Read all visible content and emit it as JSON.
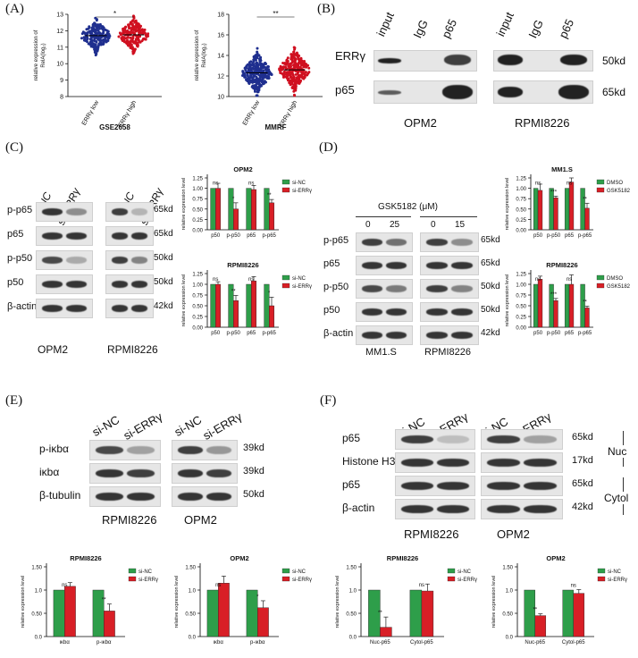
{
  "panels": {
    "A": {
      "label": "(A)",
      "charts": [
        {
          "id": "a1",
          "ylabel": "relative expression of\nRelA(log₂)",
          "groups": [
            "ERRγ low",
            "ERRγ high"
          ],
          "title": "GSE2658",
          "sig": "*",
          "yticks": [
            8,
            9,
            10,
            11,
            12,
            13
          ],
          "ylim": [
            8,
            13
          ],
          "colors": [
            "#1f2f8f",
            "#d01020"
          ],
          "median": [
            11.7,
            11.75
          ],
          "spread": [
            0.45,
            0.45
          ],
          "npoints": 200
        },
        {
          "id": "a2",
          "ylabel": "relative expression of\nRelA(log₂)",
          "groups": [
            "ERRγ low",
            "ERRγ high"
          ],
          "title": "MMRF",
          "sig": "**",
          "yticks": [
            10,
            12,
            14,
            16,
            18
          ],
          "ylim": [
            10,
            18
          ],
          "colors": [
            "#1f2f8f",
            "#d01020"
          ],
          "median": [
            12.3,
            12.6
          ],
          "spread": [
            0.9,
            0.9
          ],
          "npoints": 300
        }
      ]
    },
    "B": {
      "label": "(B)",
      "lanes_left": [
        "input",
        "IgG",
        "p65"
      ],
      "lanes_right": [
        "input",
        "IgG",
        "p65"
      ],
      "rows": [
        "ERRγ",
        "p65"
      ],
      "kd": [
        "50kd",
        "65kd"
      ],
      "cells": [
        "OPM2",
        "RPMI8226"
      ]
    },
    "C": {
      "label": "(C)",
      "lanes": [
        "si-NC",
        "si-ERRγ",
        "si-NC",
        "si-ERRγ"
      ],
      "rows": [
        "p-p65",
        "p65",
        "p-p50",
        "p50",
        "β-actin"
      ],
      "kd": [
        "65kd",
        "65kd",
        "50kd",
        "50kd",
        "42kd"
      ],
      "cells": [
        "OPM2",
        "RPMI8226"
      ]
    },
    "D": {
      "label": "(D)",
      "treatment": "GSK5182 (μM)",
      "doses": [
        "0",
        "25",
        "0",
        "15"
      ],
      "rows": [
        "p-p65",
        "p65",
        "p-p50",
        "p50",
        "β-actin"
      ],
      "kd": [
        "65kd",
        "65kd",
        "50kd",
        "50kd",
        "42kd"
      ],
      "cells": [
        "MM1.S",
        "RPMI8226"
      ]
    },
    "E": {
      "label": "(E)",
      "lanes": [
        "si-NC",
        "si-ERRγ",
        "si-NC",
        "si-ERRγ"
      ],
      "rows": [
        "p-iκbα",
        "iκbα",
        "β-tubulin"
      ],
      "kd": [
        "39kd",
        "39kd",
        "50kd"
      ],
      "cells": [
        "RPMI8226",
        "OPM2"
      ]
    },
    "F": {
      "label": "(F)",
      "lanes": [
        "si-NC",
        "si-ERRγ",
        "si-NC",
        "si-ERRγ"
      ],
      "rows": [
        "p65",
        "Histone H3",
        "p65",
        "β-actin"
      ],
      "kd": [
        "65kd",
        "17kd",
        "65kd",
        "42kd"
      ],
      "fractions": [
        "Nuc",
        "Cytol"
      ],
      "cells": [
        "RPMI8226",
        "OPM2"
      ]
    }
  },
  "chart_data": [
    {
      "id": "c1",
      "type": "bar",
      "title": "OPM2",
      "categories": [
        "p50",
        "p-p50",
        "p65",
        "p-p65"
      ],
      "series": [
        {
          "name": "si-NC",
          "values": [
            1.0,
            1.0,
            1.0,
            1.0
          ]
        },
        {
          "name": "si-ERRγ",
          "values": [
            1.0,
            0.5,
            0.97,
            0.65
          ]
        }
      ],
      "errors": [
        0.12,
        0.15,
        0.1,
        0.08
      ],
      "sig": [
        "ns",
        "*",
        "ns",
        "**"
      ],
      "ylabel": "relative expression level",
      "yticks": [
        0.0,
        0.25,
        0.5,
        0.75,
        1.0,
        1.25
      ],
      "ylim": [
        0,
        1.25
      ],
      "colors": [
        "#2e9e4a",
        "#d81f26"
      ],
      "legend": "top-right"
    },
    {
      "id": "c2",
      "type": "bar",
      "title": "RPMI8226",
      "categories": [
        "p50",
        "p-p50",
        "p65",
        "p-p65"
      ],
      "series": [
        {
          "name": "si-NC",
          "values": [
            1.0,
            1.0,
            1.0,
            1.0
          ]
        },
        {
          "name": "si-ERRγ",
          "values": [
            1.0,
            0.62,
            1.08,
            0.5
          ]
        }
      ],
      "errors": [
        0.06,
        0.12,
        0.1,
        0.2
      ],
      "sig": [
        "ns",
        "**",
        "ns",
        "*"
      ],
      "ylabel": "relative expression level",
      "yticks": [
        0.0,
        0.25,
        0.5,
        0.75,
        1.0,
        1.25
      ],
      "ylim": [
        0,
        1.25
      ],
      "colors": [
        "#2e9e4a",
        "#d81f26"
      ],
      "legend": "top-right"
    },
    {
      "id": "d1",
      "type": "bar",
      "title": "MM1.S",
      "categories": [
        "p50",
        "p-p50",
        "p65",
        "p-p65"
      ],
      "series": [
        {
          "name": "DMSO",
          "values": [
            1.0,
            1.0,
            1.0,
            1.0
          ]
        },
        {
          "name": "GSK5182",
          "values": [
            0.95,
            0.77,
            1.15,
            0.52
          ]
        }
      ],
      "errors": [
        0.15,
        0.04,
        0.12,
        0.12
      ],
      "sig": [
        "ns",
        "***",
        "ns",
        "**"
      ],
      "ylabel": "relative expression level",
      "yticks": [
        0.0,
        0.25,
        0.5,
        0.75,
        1.0,
        1.25
      ],
      "ylim": [
        0,
        1.25
      ],
      "colors": [
        "#2e9e4a",
        "#d81f26"
      ],
      "legend": "top-right"
    },
    {
      "id": "d2",
      "type": "bar",
      "title": "RPMI8226",
      "categories": [
        "p50",
        "p-p50",
        "p65",
        "p-p65"
      ],
      "series": [
        {
          "name": "DMSO",
          "values": [
            1.0,
            1.0,
            1.0,
            1.0
          ]
        },
        {
          "name": "GSK5182",
          "values": [
            1.12,
            0.62,
            1.0,
            0.45
          ]
        }
      ],
      "errors": [
        0.07,
        0.05,
        0.22,
        0.04
      ],
      "sig": [
        "ns",
        "***",
        "ns",
        "**"
      ],
      "ylabel": "relative expression level",
      "yticks": [
        0.0,
        0.25,
        0.5,
        0.75,
        1.0,
        1.25
      ],
      "ylim": [
        0,
        1.25
      ],
      "colors": [
        "#2e9e4a",
        "#d81f26"
      ],
      "legend": "top-right"
    },
    {
      "id": "e1",
      "type": "bar",
      "title": "RPMI8226",
      "categories": [
        "ικbα",
        "p-ικbα"
      ],
      "series": [
        {
          "name": "si-NC",
          "values": [
            1.0,
            1.0
          ]
        },
        {
          "name": "si-ERRγ",
          "values": [
            1.08,
            0.55
          ]
        }
      ],
      "errors": [
        0.08,
        0.15
      ],
      "sig": [
        "ns",
        "**"
      ],
      "ylabel": "relative expression level",
      "yticks": [
        0.0,
        0.5,
        1.0,
        1.5
      ],
      "ylim": [
        0,
        1.5
      ],
      "colors": [
        "#2e9e4a",
        "#d81f26"
      ],
      "legend": "top-right"
    },
    {
      "id": "e2",
      "type": "bar",
      "title": "OPM2",
      "categories": [
        "ικbα",
        "p-ικbα"
      ],
      "series": [
        {
          "name": "si-NC",
          "values": [
            1.0,
            1.0
          ]
        },
        {
          "name": "si-ERRγ",
          "values": [
            1.15,
            0.62
          ]
        }
      ],
      "errors": [
        0.15,
        0.15
      ],
      "sig": [
        "ns",
        "*"
      ],
      "ylabel": "relative expression level",
      "yticks": [
        0.0,
        0.5,
        1.0,
        1.5
      ],
      "ylim": [
        0,
        1.5
      ],
      "colors": [
        "#2e9e4a",
        "#d81f26"
      ],
      "legend": "top-right"
    },
    {
      "id": "f1",
      "type": "bar",
      "title": "RPMI8226",
      "categories": [
        "Nuc-p65",
        "Cytol-p65"
      ],
      "series": [
        {
          "name": "si-NC",
          "values": [
            1.0,
            1.0
          ]
        },
        {
          "name": "si-ERRγ",
          "values": [
            0.2,
            0.98
          ]
        }
      ],
      "errors": [
        0.22,
        0.15
      ],
      "sig": [
        "**",
        "ns"
      ],
      "ylabel": "relative expression level",
      "yticks": [
        0.0,
        0.5,
        1.0,
        1.5
      ],
      "ylim": [
        0,
        1.5
      ],
      "colors": [
        "#2e9e4a",
        "#d81f26"
      ],
      "legend": "top-right"
    },
    {
      "id": "f2",
      "type": "bar",
      "title": "OPM2",
      "categories": [
        "Nuc-p65",
        "Cytol-p65"
      ],
      "series": [
        {
          "name": "si-NC",
          "values": [
            1.0,
            1.0
          ]
        },
        {
          "name": "si-ERRγ",
          "values": [
            0.45,
            0.93
          ]
        }
      ],
      "errors": [
        0.04,
        0.08
      ],
      "sig": [
        "**",
        "ns"
      ],
      "ylabel": "relative expression level",
      "yticks": [
        0.0,
        0.5,
        1.0,
        1.5
      ],
      "ylim": [
        0,
        1.5
      ],
      "colors": [
        "#2e9e4a",
        "#d81f26"
      ],
      "legend": "top-right"
    }
  ]
}
